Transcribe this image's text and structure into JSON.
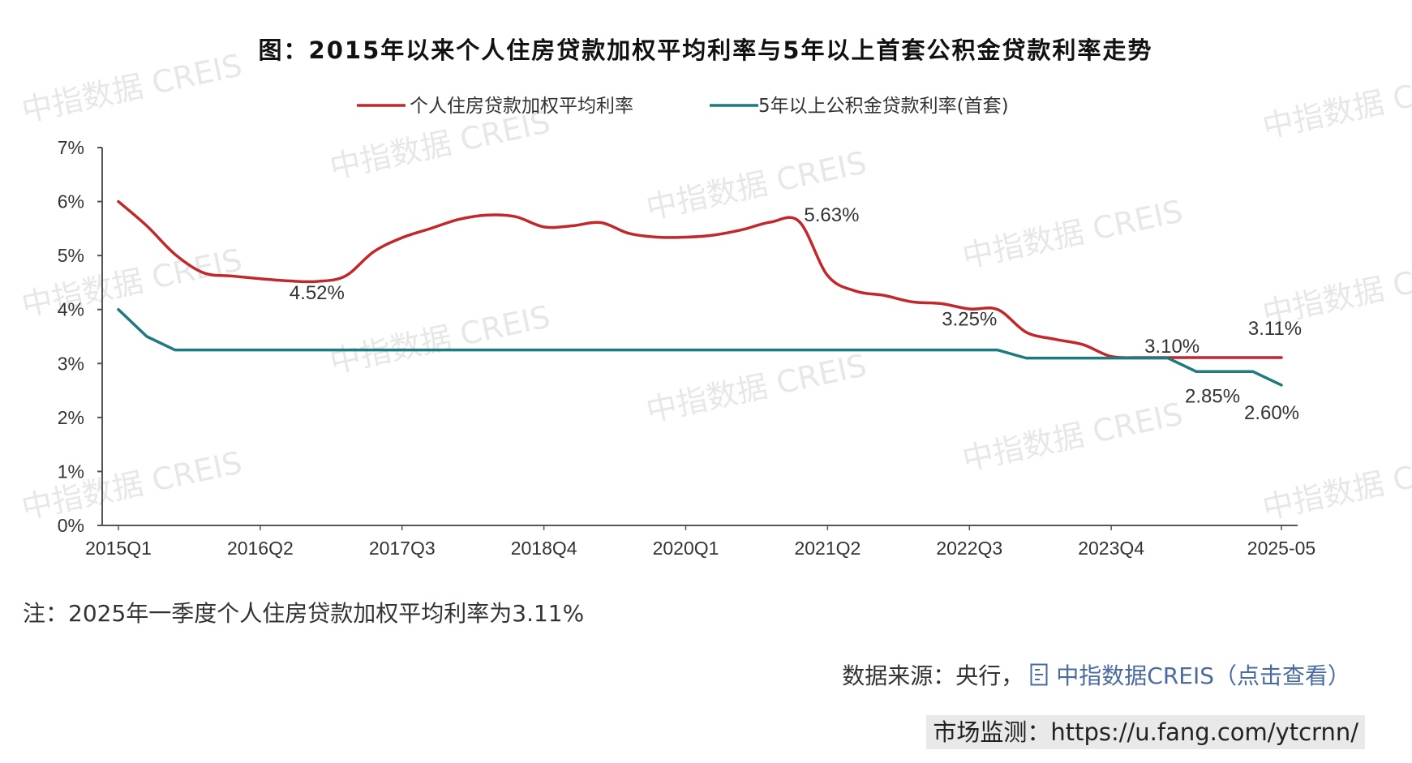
{
  "chart_data": {
    "type": "line",
    "title": "图：2015年以来个人住房贷款加权平均利率与5年以上首套公积金贷款利率走势",
    "xlabel": "",
    "ylabel": "",
    "ylim": [
      0,
      7
    ],
    "yticks": [
      "0%",
      "1%",
      "2%",
      "3%",
      "4%",
      "5%",
      "6%",
      "7%"
    ],
    "xtick_labels": [
      "2015Q1",
      "2016Q2",
      "2017Q3",
      "2018Q4",
      "2020Q1",
      "2021Q2",
      "2022Q3",
      "2023Q4",
      "2025-05"
    ],
    "x": [
      "2015Q1",
      "2015Q2",
      "2015Q3",
      "2015Q4",
      "2016Q1",
      "2016Q2",
      "2016Q3",
      "2016Q4",
      "2017Q1",
      "2017Q2",
      "2017Q3",
      "2017Q4",
      "2018Q1",
      "2018Q2",
      "2018Q3",
      "2018Q4",
      "2019Q1",
      "2019Q2",
      "2019Q3",
      "2019Q4",
      "2020Q1",
      "2020Q2",
      "2020Q3",
      "2020Q4",
      "2021Q1",
      "2021Q2",
      "2021Q3",
      "2021Q4",
      "2022Q1",
      "2022Q2",
      "2022Q3",
      "2022Q4",
      "2023Q1",
      "2023Q2",
      "2023Q3",
      "2023Q4",
      "2024Q1",
      "2024Q2",
      "2024Q3",
      "2024Q4",
      "2025Q1",
      "2025-05"
    ],
    "series": [
      {
        "name": "个人住房贷款加权平均利率",
        "color": "#c0282b",
        "values": [
          6.0,
          5.55,
          5.02,
          4.68,
          4.62,
          4.57,
          4.53,
          4.52,
          4.62,
          5.07,
          5.33,
          5.5,
          5.67,
          5.75,
          5.72,
          5.53,
          5.55,
          5.61,
          5.41,
          5.34,
          5.34,
          5.38,
          5.48,
          5.62,
          5.63,
          4.63,
          4.34,
          4.26,
          4.14,
          4.11,
          4.01,
          4.0,
          3.58,
          3.45,
          3.35,
          3.13,
          3.11,
          3.11,
          3.11,
          3.11,
          3.11,
          3.11
        ]
      },
      {
        "name": "5年以上公积金贷款利率(首套)",
        "color": "#1f7a80",
        "values": [
          4.0,
          3.5,
          3.25,
          3.25,
          3.25,
          3.25,
          3.25,
          3.25,
          3.25,
          3.25,
          3.25,
          3.25,
          3.25,
          3.25,
          3.25,
          3.25,
          3.25,
          3.25,
          3.25,
          3.25,
          3.25,
          3.25,
          3.25,
          3.25,
          3.25,
          3.25,
          3.25,
          3.25,
          3.25,
          3.25,
          3.25,
          3.25,
          3.1,
          3.1,
          3.1,
          3.1,
          3.1,
          3.1,
          2.85,
          2.85,
          2.85,
          2.6
        ]
      }
    ],
    "annotations": [
      "4.52%",
      "5.63%",
      "3.25%",
      "3.10%",
      "3.11%",
      "2.85%",
      "2.60%"
    ],
    "legend_position": "top",
    "grid": false
  },
  "watermark_text": "中指数据 CREIS",
  "note": "注：2025年一季度个人住房贷款加权平均利率为3.11%",
  "source": {
    "prefix": "数据来源：央行，",
    "link_label": "中指数据CREIS（点击查看）",
    "link_icon": "document-icon"
  },
  "monitor_text": "市场监测：https://u.fang.com/ytcrnn/"
}
